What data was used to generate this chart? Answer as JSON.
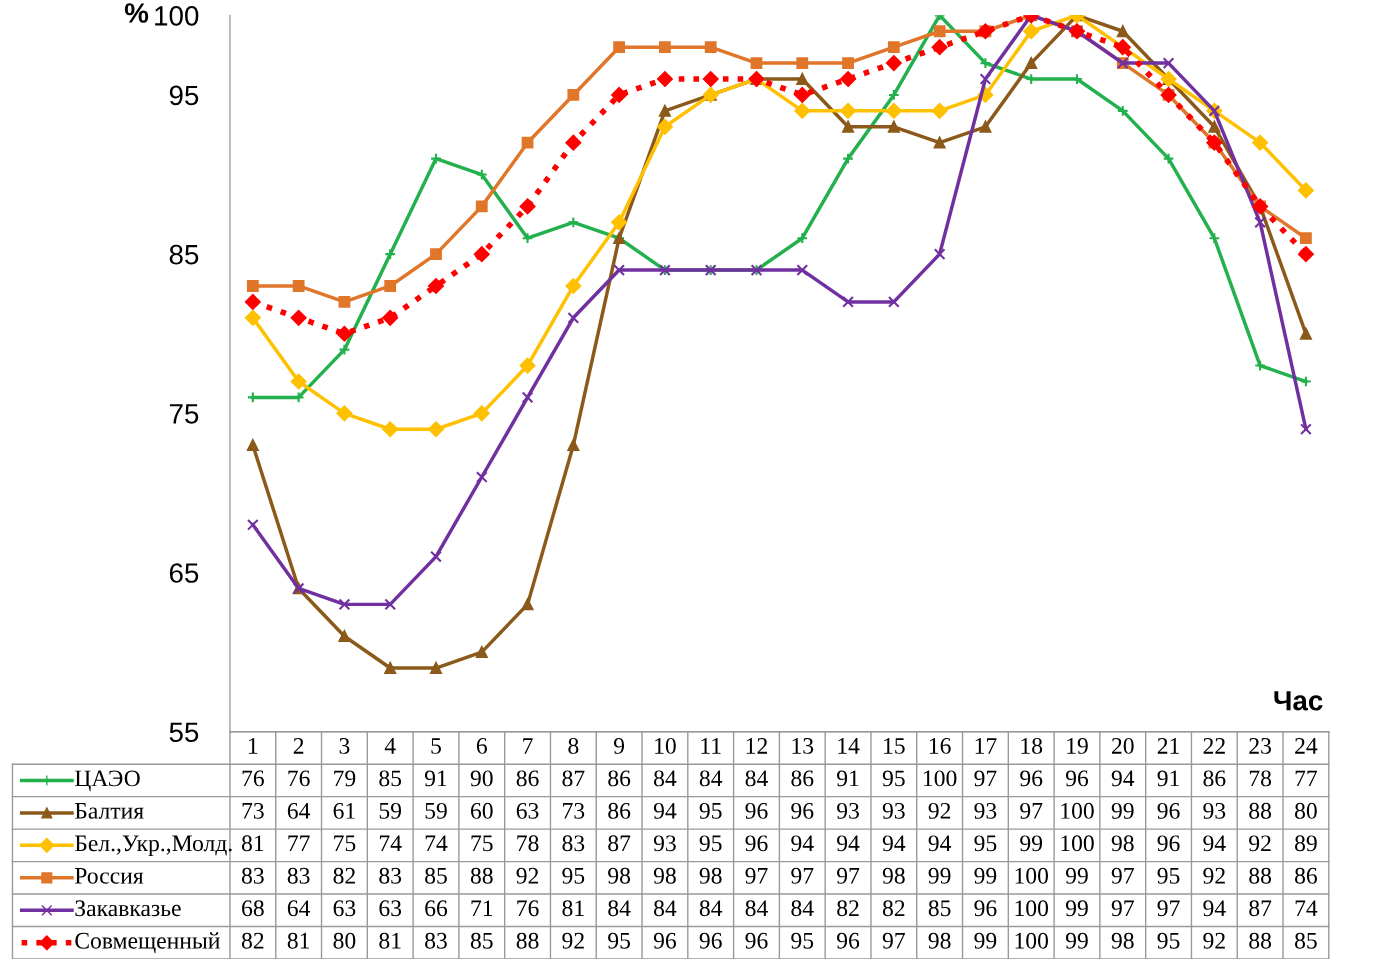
{
  "chart_data": {
    "type": "line",
    "ylabel": "%",
    "xlabel": "Час",
    "categories": [
      "1",
      "2",
      "3",
      "4",
      "5",
      "6",
      "7",
      "8",
      "9",
      "10",
      "11",
      "12",
      "13",
      "14",
      "15",
      "16",
      "17",
      "18",
      "19",
      "20",
      "21",
      "22",
      "23",
      "24"
    ],
    "ylim": [
      55,
      100
    ],
    "yticks": [
      55,
      65,
      75,
      85,
      95,
      100
    ],
    "grid": false,
    "legend": "bottom",
    "data_labels": true,
    "line_style": "solid",
    "series": [
      {
        "name": "ЦАЭО",
        "color": "#22b14c",
        "marker": "cross",
        "values": [
          76,
          76,
          79,
          85,
          91,
          90,
          86,
          87,
          86,
          84,
          84,
          84,
          86,
          91,
          95,
          100,
          97,
          96,
          96,
          94,
          91,
          86,
          78,
          77
        ]
      },
      {
        "name": "Балтия",
        "color": "#8b5a1a",
        "marker": "triangle",
        "values": [
          73,
          64,
          61,
          59,
          59,
          60,
          63,
          73,
          86,
          94,
          95,
          96,
          96,
          93,
          93,
          92,
          93,
          97,
          100,
          99,
          96,
          93,
          88,
          80
        ]
      },
      {
        "name": "Бел.,Укр.,Молд.",
        "color": "#ffc000",
        "marker": "diamond",
        "values": [
          81,
          77,
          75,
          74,
          74,
          75,
          78,
          83,
          87,
          93,
          95,
          96,
          94,
          94,
          94,
          94,
          95,
          99,
          100,
          98,
          96,
          94,
          92,
          89
        ]
      },
      {
        "name": "Россия",
        "color": "#e0762a",
        "marker": "square",
        "values": [
          83,
          83,
          82,
          83,
          85,
          88,
          92,
          95,
          98,
          98,
          98,
          97,
          97,
          97,
          98,
          99,
          99,
          100,
          99,
          97,
          95,
          92,
          88,
          86
        ]
      },
      {
        "name": "Закавказье",
        "color": "#7030a0",
        "marker": "x",
        "values": [
          68,
          64,
          63,
          63,
          66,
          71,
          76,
          81,
          84,
          84,
          84,
          84,
          84,
          82,
          82,
          85,
          96,
          100,
          99,
          97,
          97,
          94,
          87,
          74
        ]
      },
      {
        "name": "Совмещенный",
        "color": "#ff0000",
        "marker": "diamond",
        "line_style": "dotted",
        "values": [
          82,
          81,
          80,
          81,
          83,
          85,
          88,
          92,
          95,
          96,
          96,
          96,
          95,
          96,
          97,
          98,
          99,
          100,
          99,
          98,
          95,
          92,
          88,
          85
        ]
      }
    ]
  }
}
